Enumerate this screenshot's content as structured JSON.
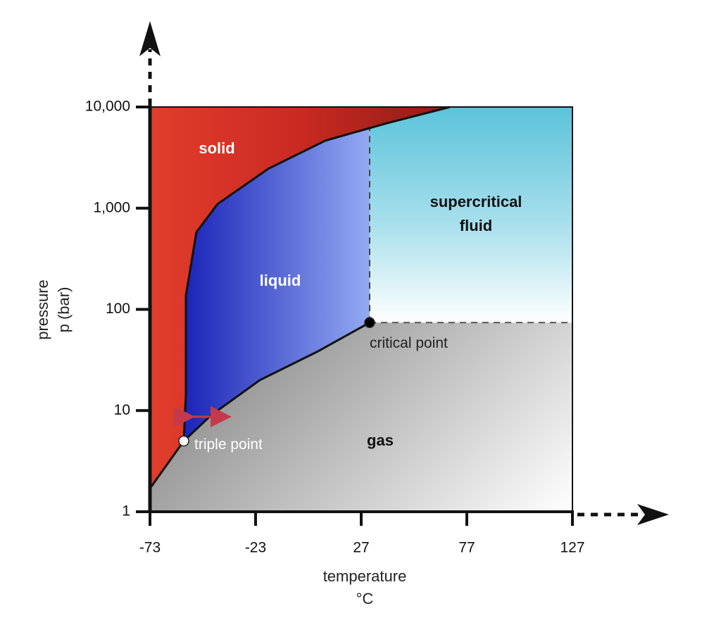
{
  "chart_data": {
    "type": "phase-diagram",
    "x_label": "temperature",
    "x_unit": "°C",
    "y_label": "pressure",
    "y_unit": "p (bar)",
    "xlim": [
      -73,
      127
    ],
    "xticks": [
      -73,
      -23,
      27,
      77,
      127
    ],
    "ylim": [
      1,
      10000
    ],
    "yscale": "log",
    "yticks": [
      1,
      10,
      100,
      {
        "value": 1000,
        "label": "1,000"
      },
      {
        "value": 10000,
        "label": "10,000"
      }
    ],
    "regions": [
      {
        "label": [
          "solid"
        ],
        "color": "#d8352a",
        "text_color": "#ffffff"
      },
      {
        "label": [
          "liquid"
        ],
        "color": "#2535c8",
        "text_color": "#ffffff"
      },
      {
        "label": [
          "supercritical",
          "fluid"
        ],
        "color": "#5fc4da",
        "text_color": "#111111"
      },
      {
        "label": [
          "gas"
        ],
        "color": "#7a7a7a",
        "text_color": "#111111"
      }
    ],
    "boundaries": [
      {
        "x": [
          -73,
          -57
        ],
        "values": [
          1.7,
          5
        ]
      },
      {
        "x": [
          -57,
          -44,
          -21,
          6,
          31
        ],
        "values": [
          5,
          9,
          20,
          38,
          74
        ]
      },
      {
        "x": [
          -57,
          -56,
          -56,
          -51,
          -41,
          -17,
          10,
          39,
          69
        ],
        "values": [
          5,
          14.5,
          137,
          580,
          1100,
          2450,
          4650,
          6900,
          10000
        ]
      }
    ],
    "points": [
      {
        "label": "triple point",
        "x": -57,
        "y": 5,
        "color": "#ffffff"
      },
      {
        "label": "critical point",
        "x": 31,
        "y": 74,
        "color": "#000000"
      }
    ]
  }
}
